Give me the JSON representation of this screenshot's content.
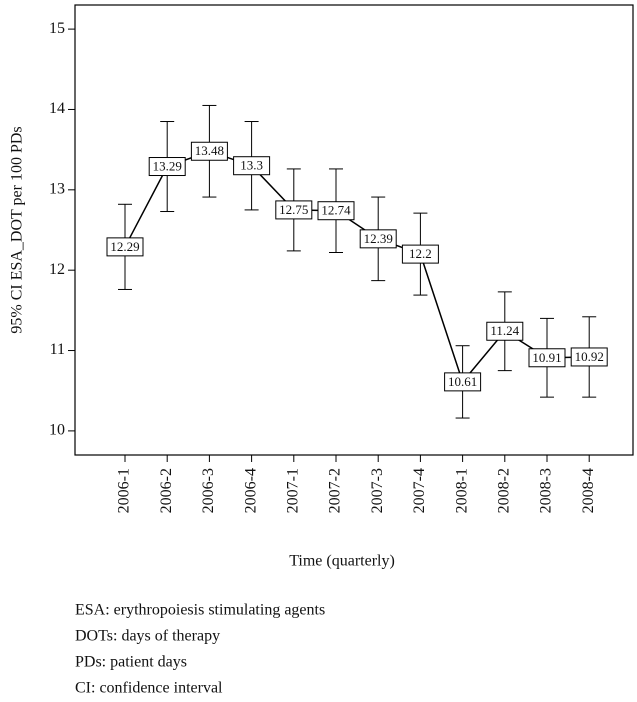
{
  "chart_data": {
    "type": "line",
    "y_label": "95% CI ESA_DOT per 100 PDs",
    "x_label": "Time (quarterly)",
    "categories": [
      "2006-1",
      "2006-2",
      "2006-3",
      "2006-4",
      "2007-1",
      "2007-2",
      "2007-3",
      "2007-4",
      "2008-1",
      "2008-2",
      "2008-3",
      "2008-4"
    ],
    "values": [
      12.29,
      13.29,
      13.48,
      13.3,
      12.75,
      12.74,
      12.39,
      12.2,
      10.61,
      11.24,
      10.91,
      10.92
    ],
    "errors": [
      0.53,
      0.56,
      0.57,
      0.55,
      0.51,
      0.52,
      0.52,
      0.51,
      0.45,
      0.49,
      0.49,
      0.5
    ],
    "color": "#000000",
    "ylim": [
      9.7,
      15.3
    ],
    "yticks": [
      10,
      11,
      12,
      13,
      14,
      15
    ]
  },
  "notes": [
    "ESA: erythropoiesis stimulating agents",
    "DOTs: days of therapy",
    "PDs: patient days",
    "CI: confidence interval"
  ]
}
